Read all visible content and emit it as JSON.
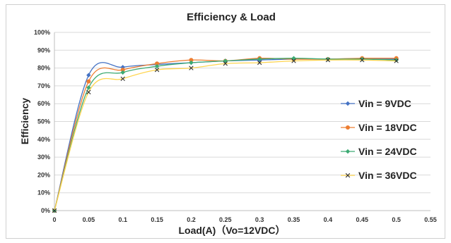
{
  "chart_data": {
    "type": "line",
    "title": "Efficiency & Load",
    "xlabel": "Load(A)（Vo=12VDC）",
    "ylabel": "Efficiency",
    "xlim": [
      0,
      0.55
    ],
    "ylim": [
      0,
      100
    ],
    "x_ticks": [
      "0",
      "0.05",
      "0.1",
      "0.15",
      "0.2",
      "0.25",
      "0.3",
      "0.35",
      "0.4",
      "0.45",
      "0.5",
      "0.55"
    ],
    "y_ticks": [
      "0%",
      "10%",
      "20%",
      "30%",
      "40%",
      "50%",
      "60%",
      "70%",
      "80%",
      "90%",
      "100%"
    ],
    "grid": "horizontal",
    "legend_position": "right",
    "x": [
      0,
      0.05,
      0.1,
      0.15,
      0.2,
      0.25,
      0.3,
      0.35,
      0.4,
      0.45,
      0.5
    ],
    "series": [
      {
        "name": "Vin = 9VDC",
        "color": "#4472C4",
        "marker": "diamond",
        "values": [
          0,
          76,
          80.5,
          82,
          83,
          84,
          84.5,
          85,
          85,
          85,
          85
        ]
      },
      {
        "name": "Vin = 18VDC",
        "color": "#ED7D31",
        "marker": "circle",
        "values": [
          0,
          72.5,
          79,
          82.5,
          84.5,
          84,
          85.5,
          85,
          85,
          85.5,
          85.5
        ]
      },
      {
        "name": "Vin = 24VDC",
        "color": "#3DAA73",
        "marker": "diamond",
        "values": [
          0,
          69,
          77.5,
          81,
          83,
          84,
          85,
          85.5,
          85,
          85,
          84.5
        ]
      },
      {
        "name": "Vin = 36VDC",
        "color": "#FFD54F",
        "marker": "x",
        "values": [
          0,
          66.5,
          74,
          79,
          80,
          82.5,
          83,
          84,
          84.5,
          84.5,
          84
        ]
      }
    ]
  }
}
